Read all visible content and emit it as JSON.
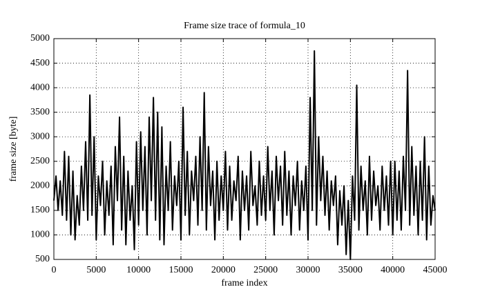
{
  "chart_data": {
    "type": "line",
    "title": "Frame size trace of formula_10",
    "x_label": "frame index",
    "y_label": "frame size [byte]",
    "xlim": [
      0,
      45000
    ],
    "xticks": [
      0,
      5000,
      10000,
      15000,
      20000,
      25000,
      30000,
      35000,
      40000,
      45000
    ],
    "ylim": [
      500,
      5000
    ],
    "yticks": [
      500,
      1000,
      1500,
      2000,
      2500,
      3000,
      3500,
      4000,
      4500,
      5000
    ],
    "grid": true,
    "x": [
      0,
      250,
      500,
      750,
      1000,
      1250,
      1500,
      1750,
      2000,
      2250,
      2500,
      2750,
      3000,
      3250,
      3500,
      3750,
      4000,
      4250,
      4500,
      4750,
      5000,
      5250,
      5500,
      5750,
      6000,
      6250,
      6500,
      6750,
      7000,
      7250,
      7500,
      7750,
      8000,
      8250,
      8500,
      8750,
      9000,
      9250,
      9500,
      9750,
      10000,
      10250,
      10500,
      10750,
      11000,
      11250,
      11500,
      11750,
      12000,
      12250,
      12500,
      12750,
      13000,
      13250,
      13500,
      13750,
      14000,
      14250,
      14500,
      14750,
      15000,
      15250,
      15500,
      15750,
      16000,
      16250,
      16500,
      16750,
      17000,
      17250,
      17500,
      17750,
      18000,
      18250,
      18500,
      18750,
      19000,
      19250,
      19500,
      19750,
      20000,
      20250,
      20500,
      20750,
      21000,
      21250,
      21500,
      21750,
      22000,
      22250,
      22500,
      22750,
      23000,
      23250,
      23500,
      23750,
      24000,
      24250,
      24500,
      24750,
      25000,
      25250,
      25500,
      25750,
      26000,
      26250,
      26500,
      26750,
      27000,
      27250,
      27500,
      27750,
      28000,
      28250,
      28500,
      28750,
      29000,
      29250,
      29500,
      29750,
      30000,
      30250,
      30500,
      30750,
      31000,
      31250,
      31500,
      31750,
      32000,
      32250,
      32500,
      32750,
      33000,
      33250,
      33500,
      33750,
      34000,
      34250,
      34500,
      34750,
      35000,
      35250,
      35500,
      35750,
      36000,
      36250,
      36500,
      36750,
      37000,
      37250,
      37500,
      37750,
      38000,
      38250,
      38500,
      38750,
      39000,
      39250,
      39500,
      39750,
      40000,
      40250,
      40500,
      40750,
      41000,
      41250,
      41500,
      41750,
      42000,
      42250,
      42500,
      42750,
      43000,
      43250,
      43500,
      43750,
      44000,
      44250,
      44500,
      44750,
      45000
    ],
    "series": [
      {
        "color": "#000000",
        "values": [
          1700,
          2200,
          1500,
          2100,
          1400,
          2700,
          1300,
          2600,
          1000,
          2300,
          900,
          1800,
          1200,
          2400,
          1500,
          2900,
          1300,
          3850,
          1400,
          3000,
          900,
          2200,
          1600,
          2500,
          1000,
          2100,
          1400,
          2400,
          800,
          2800,
          1700,
          3400,
          1100,
          2600,
          800,
          2300,
          1300,
          2000,
          700,
          2900,
          1200,
          3100,
          1500,
          2800,
          1000,
          3400,
          1700,
          3800,
          1300,
          3500,
          900,
          3200,
          800,
          2400,
          1500,
          2900,
          1100,
          2200,
          1600,
          2500,
          900,
          3600,
          1400,
          2700,
          1000,
          2300,
          1700,
          2600,
          1200,
          3000,
          1500,
          3900,
          1100,
          2800,
          1600,
          2300,
          900,
          2500,
          1300,
          2200,
          1500,
          2700,
          1100,
          2400,
          1300,
          2100,
          1700,
          2600,
          900,
          2300,
          1500,
          2200,
          1100,
          2700,
          1600,
          2000,
          1200,
          2500,
          1400,
          2200,
          1300,
          2800,
          1500,
          2300,
          1000,
          2600,
          1700,
          2400,
          1200,
          2700,
          1400,
          2300,
          1000,
          2200,
          1600,
          2500,
          1100,
          2100,
          1500,
          2400,
          900,
          3800,
          1500,
          4750,
          1200,
          3000,
          1700,
          2600,
          1400,
          2300,
          1100,
          2100,
          1600,
          2200,
          800,
          1900,
          1200,
          2000,
          600,
          1700,
          500,
          2200,
          1300,
          4050,
          1100,
          2400,
          1500,
          2100,
          1000,
          2600,
          1300,
          2300,
          1600,
          2000,
          1100,
          2400,
          1500,
          2200,
          1200,
          2500,
          1000,
          2500,
          1300,
          2300,
          1100,
          2600,
          1500,
          4350,
          1200,
          2800,
          1400,
          2400,
          1000,
          2500,
          1300,
          3000,
          900,
          2400,
          1200,
          1800,
          1500
        ]
      }
    ]
  }
}
